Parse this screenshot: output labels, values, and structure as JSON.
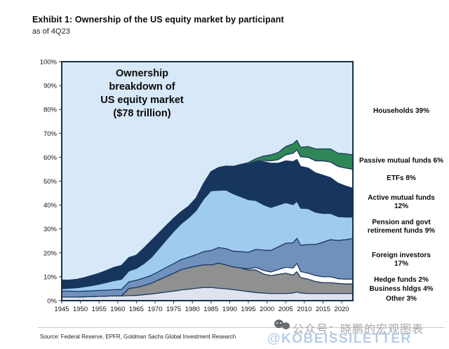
{
  "header": {
    "title": "Exhibit 1: Ownership of the US equity market by participant",
    "subtitle": "as of 4Q23"
  },
  "annotation": {
    "text": "Ownership\nbreakdown  of\nUS equity market\n($78 trillion)"
  },
  "legend": {
    "items": [
      {
        "label": "Households 39%",
        "color": "#d7e8f8"
      },
      {
        "label": "Passive mutual funds 6%",
        "color": "#2f8656"
      },
      {
        "label": "ETFs 8%",
        "color": "#ffffff"
      },
      {
        "label": "Active mutual funds\n12%",
        "color": "#17365d"
      },
      {
        "label": "Pension and govt\nretirement funds 9%",
        "color": "#9fcbee"
      },
      {
        "label": "Foreign investors\n17%",
        "color": "#7191bd"
      },
      {
        "label": "Hedge funds 2%",
        "color": "#ffffff"
      },
      {
        "label": "Business hldgs 4%",
        "color": "#8f9090"
      },
      {
        "label": "Other 3%",
        "color": "#dfe3ee"
      }
    ]
  },
  "chart_data": {
    "type": "area",
    "stacked": true,
    "unit": "% of US equity market ownership",
    "xlim": [
      1945,
      2023
    ],
    "ylim": [
      0,
      100
    ],
    "x_ticks": [
      1945,
      1950,
      1955,
      1960,
      1965,
      1970,
      1975,
      1980,
      1985,
      1990,
      1995,
      2000,
      2005,
      2010,
      2015,
      2020
    ],
    "y_ticks_pct": [
      0,
      10,
      20,
      30,
      40,
      50,
      60,
      70,
      80,
      90,
      100
    ],
    "stroke_color": "#17365d",
    "background": {
      "name": "Households",
      "color": "#d7e8f8",
      "current_share_pct": 39
    },
    "x": [
      1945,
      1947,
      1949,
      1951,
      1953,
      1955,
      1957,
      1959,
      1961,
      1963,
      1965,
      1967,
      1969,
      1971,
      1973,
      1975,
      1977,
      1979,
      1981,
      1983,
      1985,
      1987,
      1989,
      1991,
      1993,
      1995,
      1997,
      1999,
      2001,
      2003,
      2005,
      2007,
      2008,
      2009,
      2011,
      2013,
      2015,
      2017,
      2019,
      2021,
      2023
    ],
    "series": [
      {
        "id": "other",
        "name": "Other",
        "current_share_pct": 3,
        "color": "#dfe3ee",
        "values": [
          1.5,
          1.5,
          1.5,
          1.6,
          1.7,
          1.8,
          1.9,
          2.0,
          2.0,
          2.1,
          2.2,
          2.5,
          2.8,
          3.2,
          3.6,
          4.0,
          4.5,
          4.8,
          5.2,
          5.5,
          5.5,
          5.2,
          5.0,
          4.6,
          4.2,
          3.8,
          3.4,
          3.2,
          3.0,
          3.0,
          3.0,
          3.2,
          3.6,
          3.2,
          3.0,
          3.0,
          3.0,
          3.0,
          3.0,
          3.0,
          3.0
        ]
      },
      {
        "id": "business-hldgs",
        "name": "Business hldgs",
        "current_share_pct": 4,
        "color": "#8f9090",
        "values": [
          0,
          0,
          0,
          0,
          0,
          0,
          0,
          0,
          0,
          3.0,
          3.3,
          3.8,
          4.5,
          5.5,
          6.5,
          7.5,
          8.5,
          9.0,
          9.2,
          9.5,
          9.5,
          10.5,
          10.0,
          9.5,
          9.5,
          9.0,
          9.5,
          8.0,
          7.5,
          8.0,
          8.5,
          7.5,
          8.5,
          6.5,
          6.0,
          5.0,
          4.5,
          4.5,
          4.2,
          4.0,
          4.0
        ]
      },
      {
        "id": "hedge-funds",
        "name": "Hedge funds",
        "current_share_pct": 2,
        "color": "#fdfdfd",
        "values": [
          0,
          0,
          0,
          0,
          0,
          0,
          0,
          0,
          0,
          0,
          0,
          0,
          0,
          0,
          0,
          0,
          0,
          0,
          0,
          0,
          0,
          0,
          0,
          0,
          0,
          0.5,
          1.0,
          1.5,
          1.5,
          2.0,
          2.5,
          3.0,
          3.5,
          2.5,
          2.5,
          2.5,
          2.5,
          2.5,
          2.0,
          2.0,
          2.0
        ]
      },
      {
        "id": "foreign-investors",
        "name": "Foreign investors",
        "current_share_pct": 17,
        "color": "#7191bd",
        "values": [
          2.5,
          2.5,
          2.4,
          2.4,
          2.4,
          2.5,
          2.5,
          2.6,
          2.7,
          2.8,
          3.0,
          3.2,
          3.3,
          3.5,
          3.8,
          4.0,
          4.2,
          4.4,
          4.8,
          5.5,
          6.0,
          6.5,
          6.8,
          6.6,
          6.8,
          7.0,
          7.5,
          8.5,
          9.0,
          9.5,
          10.0,
          10.5,
          10.5,
          11.0,
          12.0,
          13.0,
          14.5,
          15.5,
          16.0,
          16.5,
          17.0
        ]
      },
      {
        "id": "pension-govt-retirement",
        "name": "Pension and govt retirement funds",
        "current_share_pct": 9,
        "color": "#9fcbee",
        "values": [
          1.0,
          1.2,
          1.5,
          1.8,
          2.2,
          2.6,
          3.2,
          3.8,
          4.2,
          4.6,
          5.0,
          6.0,
          7.5,
          9.5,
          11.5,
          13.5,
          15.0,
          16.5,
          18.5,
          22.0,
          25.0,
          24.0,
          24.5,
          24.0,
          23.0,
          22.0,
          20.5,
          19.0,
          18.0,
          17.5,
          17.0,
          16.0,
          15.5,
          15.5,
          15.0,
          13.5,
          12.0,
          11.0,
          10.0,
          9.5,
          9.0
        ]
      },
      {
        "id": "active-mutual-funds",
        "name": "Active mutual funds",
        "current_share_pct": 12,
        "color": "#17365d",
        "values": [
          3.5,
          3.4,
          3.5,
          3.8,
          4.2,
          4.5,
          5.0,
          5.5,
          5.8,
          5.5,
          5.5,
          6.5,
          7.0,
          6.5,
          6.0,
          5.5,
          5.0,
          4.8,
          5.2,
          6.5,
          8.0,
          9.5,
          10.0,
          11.5,
          13.5,
          15.0,
          16.5,
          18.0,
          18.5,
          17.5,
          17.5,
          18.0,
          17.5,
          17.5,
          17.0,
          16.5,
          16.0,
          15.0,
          14.0,
          13.0,
          12.0
        ]
      },
      {
        "id": "etfs",
        "name": "ETFs",
        "current_share_pct": 8,
        "color": "#ffffff",
        "values": [
          0,
          0,
          0,
          0,
          0,
          0,
          0,
          0,
          0,
          0,
          0,
          0,
          0,
          0,
          0,
          0,
          0,
          0,
          0,
          0,
          0,
          0,
          0,
          0,
          0,
          0,
          0,
          0.5,
          1.0,
          1.5,
          2.5,
          3.5,
          4.0,
          4.0,
          4.5,
          5.0,
          6.0,
          6.5,
          7.0,
          7.5,
          8.0
        ]
      },
      {
        "id": "passive-mutual-funds",
        "name": "Passive mutual funds",
        "current_share_pct": 6,
        "color": "#2f8656",
        "values": [
          0,
          0,
          0,
          0,
          0,
          0,
          0,
          0,
          0,
          0,
          0,
          0,
          0,
          0,
          0,
          0,
          0,
          0,
          0,
          0,
          0,
          0,
          0,
          0,
          0,
          0.5,
          1.0,
          1.8,
          2.5,
          3.0,
          3.5,
          4.0,
          4.0,
          4.0,
          4.5,
          5.0,
          5.0,
          5.5,
          5.5,
          6.0,
          6.0
        ]
      }
    ]
  },
  "footer": {
    "source": "Source: Federal Reserve, EPFR, Goldman Sachs Global Investment Research",
    "watermark_icon": "wechat-chat-bubbles-icon",
    "watermark_cn": "公众号：晓鹏的宏观图表",
    "watermark_en": "@KOBEISSILETTER"
  }
}
